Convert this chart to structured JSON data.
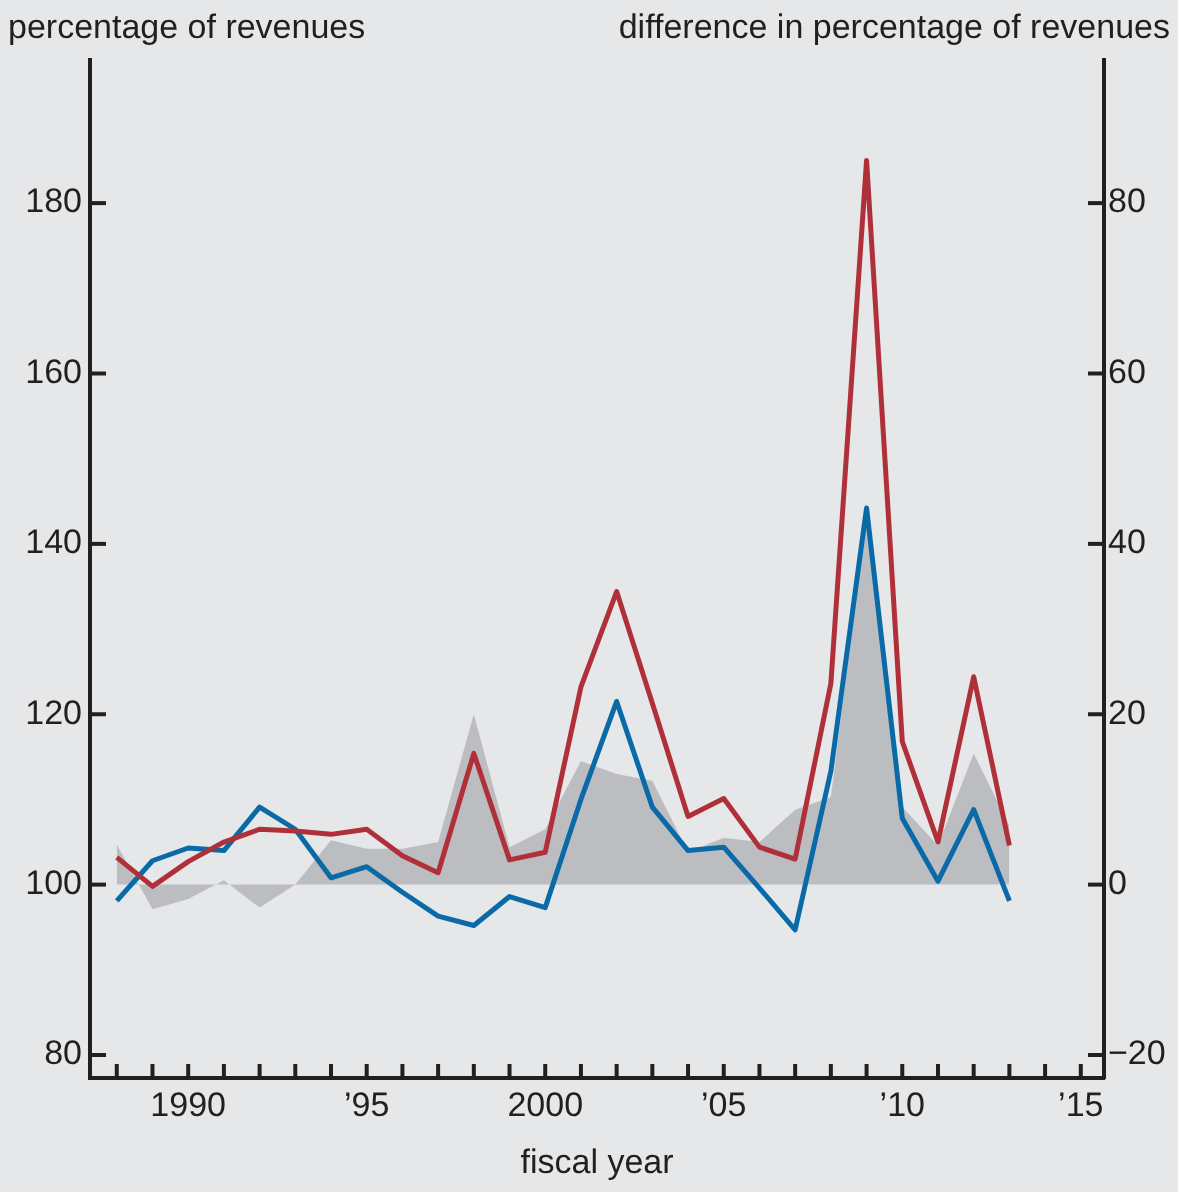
{
  "chart_data": {
    "type": "line",
    "xlabel": "fiscal year",
    "ylabel": "percentage of revenues",
    "y2label": "difference in percentage of revenues",
    "x": [
      1988,
      1989,
      1990,
      1991,
      1992,
      1993,
      1994,
      1995,
      1996,
      1997,
      1998,
      1999,
      2000,
      2001,
      2002,
      2003,
      2004,
      2005,
      2006,
      2007,
      2008,
      2009,
      2010,
      2011,
      2012,
      2013
    ],
    "series": [
      {
        "type": "area",
        "axis": "y2",
        "color": "#bcbdc1",
        "values": [
          4.7,
          -2.9,
          -1.7,
          0.5,
          -2.7,
          0,
          5.2,
          4.2,
          4.2,
          5,
          20,
          4.4,
          6.5,
          14.5,
          13,
          12.2,
          3.8,
          5.5,
          5,
          8.8,
          10.3,
          43.4,
          9.1,
          4.6,
          15.4,
          6.9
        ]
      },
      {
        "color": "#0a6aa8",
        "values": [
          98.1,
          102.8,
          104.3,
          104,
          109.1,
          106.5,
          100.8,
          102.1,
          99.1,
          96.3,
          95.2,
          98.6,
          97.3,
          110,
          121.5,
          109.1,
          104,
          104.4,
          99.6,
          94.7,
          113.3,
          144.2,
          107.8,
          100.4,
          108.8,
          98.1
        ]
      },
      {
        "color": "#b0303a",
        "values": [
          103.2,
          99.8,
          102.7,
          105,
          106.5,
          106.3,
          105.9,
          106.5,
          103.4,
          101.4,
          115.4,
          102.9,
          103.8,
          123.2,
          134.4,
          121.3,
          108,
          110.1,
          104.4,
          103,
          123.6,
          185,
          116.8,
          105,
          124.4,
          104.6
        ]
      }
    ],
    "xlim": [
      1987.25,
      2015.65
    ],
    "xticks": [
      {
        "value": 1988,
        "label": null
      },
      {
        "value": 1989,
        "label": null
      },
      {
        "value": 1990,
        "label": "1990"
      },
      {
        "value": 1991,
        "label": null
      },
      {
        "value": 1992,
        "label": null
      },
      {
        "value": 1993,
        "label": null
      },
      {
        "value": 1994,
        "label": null
      },
      {
        "value": 1995,
        "label": "’95"
      },
      {
        "value": 1996,
        "label": null
      },
      {
        "value": 1997,
        "label": null
      },
      {
        "value": 1998,
        "label": null
      },
      {
        "value": 1999,
        "label": null
      },
      {
        "value": 2000,
        "label": "2000"
      },
      {
        "value": 2001,
        "label": null
      },
      {
        "value": 2002,
        "label": null
      },
      {
        "value": 2003,
        "label": null
      },
      {
        "value": 2004,
        "label": null
      },
      {
        "value": 2005,
        "label": "’05"
      },
      {
        "value": 2006,
        "label": null
      },
      {
        "value": 2007,
        "label": null
      },
      {
        "value": 2008,
        "label": null
      },
      {
        "value": 2009,
        "label": null
      },
      {
        "value": 2010,
        "label": "’10"
      },
      {
        "value": 2011,
        "label": null
      },
      {
        "value": 2012,
        "label": null
      },
      {
        "value": 2013,
        "label": null
      },
      {
        "value": 2014,
        "label": null
      },
      {
        "value": 2015,
        "label": "’15"
      }
    ],
    "ylim": [
      77.3,
      196.8
    ],
    "yticks": [
      80,
      100,
      120,
      140,
      160,
      180
    ],
    "y2lim": [
      -22.7,
      96.8
    ],
    "y2ticks": [
      {
        "value": -20,
        "label": "−20"
      },
      0,
      20,
      40,
      60,
      80
    ],
    "grid": false,
    "legend": false,
    "marker": "none",
    "line_style": "solid"
  }
}
